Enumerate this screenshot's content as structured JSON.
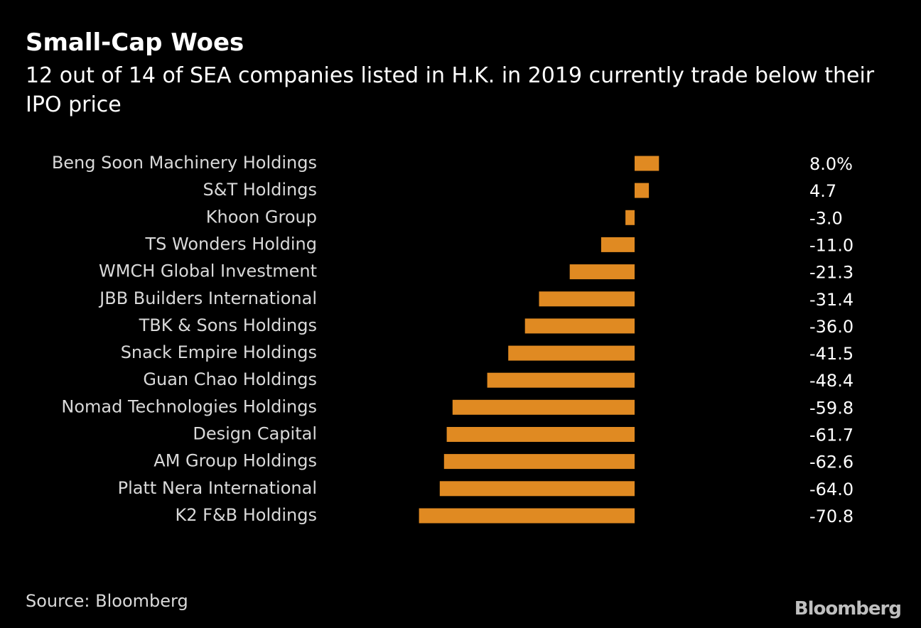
{
  "title": "Small-Cap Woes",
  "subtitle": "12 out of 14 of SEA companies listed in H.K. in 2019 currently trade below their IPO price",
  "source": "Source: Bloomberg",
  "logo": "Bloomberg",
  "colors": {
    "background": "#000000",
    "bar": "#e08a22",
    "label": "#d9d9d9",
    "value": "#ffffff"
  },
  "chart_data": {
    "type": "bar",
    "orientation": "horizontal",
    "categories": [
      "Beng Soon Machinery Holdings",
      "S&T Holdings",
      "Khoon Group",
      "TS Wonders Holding",
      "WMCH Global Investment",
      "JBB Builders International",
      "TBK & Sons Holdings",
      "Snack Empire Holdings",
      "Guan Chao Holdings",
      "Nomad Technologies Holdings",
      "Design Capital",
      "AM Group Holdings",
      "Platt Nera International",
      "K2 F&B Holdings"
    ],
    "values": [
      8.0,
      4.7,
      -3.0,
      -11.0,
      -21.3,
      -31.4,
      -36.0,
      -41.5,
      -48.4,
      -59.8,
      -61.7,
      -62.6,
      -64.0,
      -70.8
    ],
    "value_labels": [
      "8.0%",
      "4.7",
      "-3.0",
      "-11.0",
      "-21.3",
      "-31.4",
      "-36.0",
      "-41.5",
      "-48.4",
      "-59.8",
      "-61.7",
      "-62.6",
      "-64.0",
      "-70.8"
    ],
    "xlim": [
      -70.8,
      8.0
    ],
    "grid": false,
    "legend": "none"
  }
}
